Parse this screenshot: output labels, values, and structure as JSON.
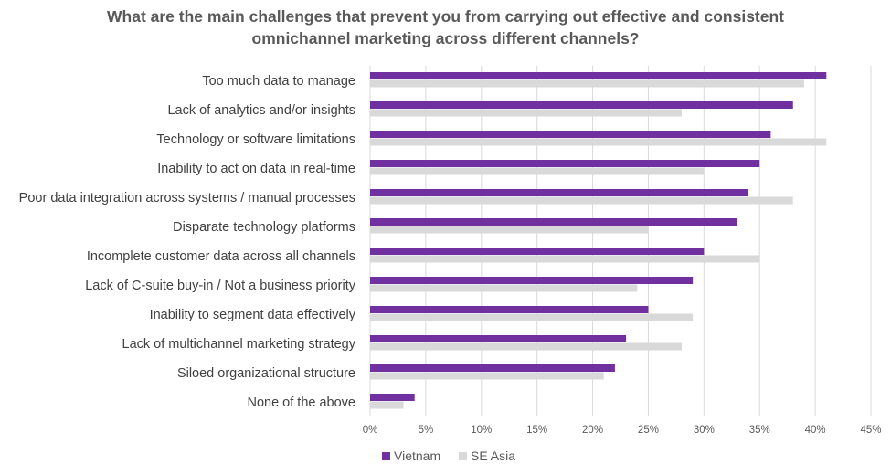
{
  "chart_data": {
    "type": "bar",
    "orientation": "horizontal",
    "title": "What are the main challenges that prevent you from carrying out effective and consistent omnichannel marketing across different channels?",
    "title_lines": [
      "What are the main challenges that prevent you from carrying out effective and consistent",
      "omnichannel marketing across different channels?"
    ],
    "categories": [
      "Too much data to manage",
      "Lack of analytics and/or insights",
      "Technology or software limitations",
      "Inability to act on data in real-time",
      "Poor data integration across systems / manual processes",
      "Disparate technology platforms",
      "Incomplete customer data across all channels",
      "Lack of C-suite buy-in / Not a business priority",
      "Inability to segment data effectively",
      "Lack of multichannel marketing strategy",
      "Siloed organizational structure",
      "None of the above"
    ],
    "series": [
      {
        "name": "Vietnam",
        "color": "#7030A0",
        "values": [
          41,
          38,
          36,
          35,
          34,
          33,
          30,
          29,
          25,
          23,
          22,
          4
        ]
      },
      {
        "name": "SE Asia",
        "color": "#D9D9D9",
        "values": [
          39,
          28,
          41,
          30,
          38,
          25,
          35,
          24,
          29,
          28,
          21,
          3
        ]
      }
    ],
    "xlim": [
      0,
      45
    ],
    "xticks": [
      "0%",
      "5%",
      "10%",
      "15%",
      "20%",
      "25%",
      "30%",
      "35%",
      "40%",
      "45%"
    ],
    "grid": true,
    "legend": "bottom",
    "xlabel": "",
    "ylabel": ""
  }
}
